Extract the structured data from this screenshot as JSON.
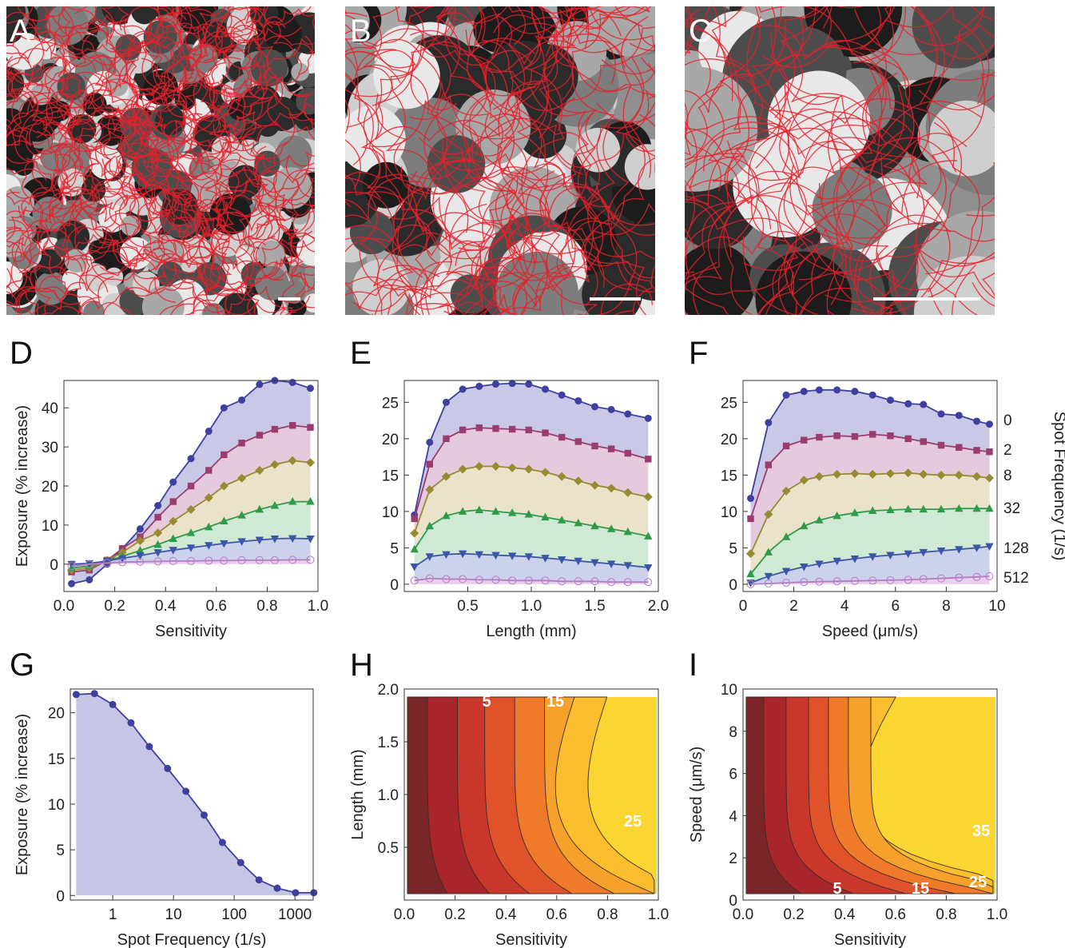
{
  "panel_labels": [
    "A",
    "B",
    "C",
    "D",
    "E",
    "F",
    "G",
    "H",
    "I"
  ],
  "series_colors": [
    "#3e3f9e",
    "#9a3c6f",
    "#978a32",
    "#2e9a4a",
    "#3b56a6",
    "#b57ac4"
  ],
  "fill_colors": [
    "#c7c5e6",
    "#e4c7dc",
    "#e9e1c6",
    "#cde8d3",
    "#c9d0ea",
    "#e7cde9"
  ],
  "markers": [
    "circle",
    "square",
    "diamond",
    "triangle-up",
    "triangle-down",
    "circle-open"
  ],
  "contour_colors": [
    "#7a2629",
    "#a8262b",
    "#c9372c",
    "#e0522a",
    "#ee7a2a",
    "#f5a12c",
    "#f9bd2d",
    "#fbd532"
  ],
  "chart_data": [
    {
      "panel": "A",
      "type": "image",
      "description": "micrograph-tiles-with-red-trajectories"
    },
    {
      "panel": "B",
      "type": "image",
      "description": "micrograph-tiles-with-red-trajectories-zoom"
    },
    {
      "panel": "C",
      "type": "image",
      "description": "micrograph-tiles-with-red-trajectories-zoom2"
    },
    {
      "panel": "D",
      "type": "line",
      "xlabel": "Sensitivity",
      "ylabel": "Exposure (% increase)",
      "xlim": [
        0,
        1
      ],
      "ylim": [
        -7,
        47
      ],
      "xticks": [
        "0.0",
        "0.2",
        "0.4",
        "0.6",
        "0.8",
        "1.0"
      ],
      "yticks": [
        "0",
        "10",
        "20",
        "30",
        "40"
      ],
      "x": [
        0.03,
        0.1,
        0.17,
        0.23,
        0.3,
        0.37,
        0.43,
        0.5,
        0.57,
        0.63,
        0.7,
        0.77,
        0.83,
        0.9,
        0.97
      ],
      "series": [
        {
          "values": [
            -5,
            -4,
            0,
            4,
            9,
            15,
            21,
            27,
            34,
            40,
            42,
            46,
            47,
            46.5,
            45
          ]
        },
        {
          "values": [
            -2,
            -1.5,
            1,
            4,
            7,
            12,
            16,
            20,
            24,
            28,
            31,
            33,
            34.5,
            35.5,
            35
          ]
        },
        {
          "values": [
            -1.5,
            -1,
            1,
            3,
            6,
            8,
            11,
            14,
            17,
            20,
            22,
            24,
            25.5,
            26.5,
            26
          ]
        },
        {
          "values": [
            -1,
            -0.5,
            0.8,
            2,
            3.5,
            5,
            6.5,
            8,
            9.5,
            11,
            12.5,
            14,
            15,
            16,
            16
          ]
        },
        {
          "values": [
            0,
            0.2,
            0.8,
            1.5,
            2.2,
            3,
            3.6,
            4.2,
            4.8,
            5.3,
            5.8,
            6.2,
            6.5,
            6.6,
            6.5
          ]
        },
        {
          "values": [
            -0.5,
            0,
            0.3,
            0.5,
            0.6,
            0.7,
            0.8,
            0.8,
            0.9,
            0.9,
            1,
            1,
            1,
            1.1,
            1.1
          ]
        }
      ]
    },
    {
      "panel": "E",
      "type": "line",
      "xlabel": "Length (mm)",
      "ylabel": "",
      "xlim": [
        0,
        2
      ],
      "ylim": [
        -1,
        28
      ],
      "xticks": [
        "0.5",
        "1.0",
        "1.5",
        "2.0"
      ],
      "yticks": [
        "0",
        "5",
        "10",
        "15",
        "20",
        "25"
      ],
      "x": [
        0.08,
        0.2,
        0.33,
        0.46,
        0.59,
        0.72,
        0.85,
        0.98,
        1.11,
        1.24,
        1.37,
        1.5,
        1.63,
        1.76,
        1.92
      ],
      "series": [
        {
          "values": [
            9.5,
            19.5,
            25,
            26.8,
            27.2,
            27.5,
            27.6,
            27.5,
            26.8,
            26,
            25.2,
            24.4,
            24,
            23.4,
            22.8
          ]
        },
        {
          "values": [
            9,
            16.5,
            20,
            21.2,
            21.5,
            21.4,
            21.3,
            21.2,
            20.8,
            20.2,
            19.6,
            19,
            18.6,
            18,
            17.2
          ]
        },
        {
          "values": [
            7,
            13,
            14.8,
            15.8,
            16.2,
            16.2,
            16,
            15.8,
            15.4,
            14.8,
            14.2,
            13.6,
            13.2,
            12.6,
            12
          ]
        },
        {
          "values": [
            4.8,
            8,
            9.4,
            10,
            10.2,
            10,
            9.8,
            9.6,
            9.2,
            8.8,
            8.4,
            8,
            7.6,
            7.2,
            6.6
          ]
        },
        {
          "values": [
            2.4,
            3.8,
            4.1,
            4.2,
            4.1,
            4,
            3.9,
            3.8,
            3.6,
            3.4,
            3.2,
            3,
            2.8,
            2.6,
            2.3
          ]
        },
        {
          "values": [
            0.5,
            0.8,
            0.7,
            0.7,
            0.6,
            0.6,
            0.5,
            0.5,
            0.5,
            0.4,
            0.4,
            0.4,
            0.3,
            0.3,
            0.3
          ]
        }
      ]
    },
    {
      "panel": "F",
      "type": "line",
      "xlabel": "Speed (μm/s)",
      "ylabel": "Spot Frequency (1/s)",
      "xlim": [
        0,
        10
      ],
      "ylim": [
        -1,
        28
      ],
      "xticks": [
        "0",
        "2",
        "4",
        "6",
        "8",
        "10"
      ],
      "yticks": [
        "0",
        "5",
        "10",
        "15",
        "20",
        "25"
      ],
      "x": [
        0.3,
        1.0,
        1.7,
        2.4,
        3.0,
        3.7,
        4.4,
        5.1,
        5.8,
        6.5,
        7.1,
        7.8,
        8.5,
        9.2,
        9.7
      ],
      "series": [
        {
          "name": "0",
          "values": [
            11.8,
            22.2,
            26,
            26.5,
            26.7,
            26.7,
            26.5,
            26,
            25.3,
            24.8,
            24.7,
            23.4,
            23.2,
            22.4,
            22
          ]
        },
        {
          "name": "2",
          "values": [
            9,
            16.4,
            19,
            19.8,
            20.2,
            20.4,
            20.3,
            20.6,
            20.4,
            20,
            19.6,
            19.1,
            18.8,
            18.4,
            18.2
          ]
        },
        {
          "name": "8",
          "values": [
            4.2,
            9.6,
            12.8,
            14.3,
            14.8,
            15.1,
            15.2,
            15.1,
            15.2,
            15.3,
            15.1,
            15,
            15,
            14.8,
            14.6
          ]
        },
        {
          "name": "32",
          "values": [
            1.4,
            4.4,
            6.5,
            8,
            8.8,
            9.4,
            9.8,
            10.1,
            10.2,
            10.3,
            10.3,
            10.3,
            10.4,
            10.4,
            10.4
          ]
        },
        {
          "name": "128",
          "values": [
            0.2,
            1.1,
            1.8,
            2.4,
            2.8,
            3.2,
            3.5,
            3.8,
            4,
            4.2,
            4.4,
            4.6,
            4.8,
            5,
            5.2
          ]
        },
        {
          "name": "512",
          "values": [
            0,
            0.1,
            0.2,
            0.3,
            0.35,
            0.4,
            0.45,
            0.5,
            0.55,
            0.6,
            0.7,
            0.8,
            0.9,
            1,
            1.1
          ]
        }
      ]
    },
    {
      "panel": "G",
      "type": "area",
      "xlabel": "Spot Frequency (1/s)",
      "ylabel": "Exposure (% increase)",
      "xscale": "log",
      "xlim": [
        0.2,
        2000
      ],
      "ylim": [
        -0.5,
        22.6
      ],
      "xticks": [
        "1",
        "10",
        "100",
        "1000"
      ],
      "yticks": [
        "0",
        "5",
        "10",
        "15",
        "20"
      ],
      "x": [
        0.25,
        0.5,
        1,
        2,
        4,
        8,
        16,
        32,
        64,
        128,
        256,
        512,
        1024,
        2048
      ],
      "values": [
        22,
        22.1,
        20.9,
        18.9,
        16.3,
        13.9,
        11.4,
        8.8,
        5.8,
        3.6,
        1.7,
        0.8,
        0.3,
        0.3
      ]
    },
    {
      "panel": "H",
      "type": "heatmap",
      "xlabel": "Sensitivity",
      "ylabel": "Length (mm)",
      "xlim": [
        0,
        1
      ],
      "ylim": [
        0,
        2
      ],
      "xticks": [
        "0.0",
        "0.2",
        "0.4",
        "0.6",
        "0.8",
        "1.0"
      ],
      "yticks": [
        "0.5",
        "1.0",
        "1.5",
        "2.0"
      ],
      "contour_labels": [
        "5",
        "15",
        "25"
      ]
    },
    {
      "panel": "I",
      "type": "heatmap",
      "xlabel": "Sensitivity",
      "ylabel": "Speed (μm/s)",
      "xlim": [
        0,
        1
      ],
      "ylim": [
        0,
        10
      ],
      "xticks": [
        "0.0",
        "0.2",
        "0.4",
        "0.6",
        "0.8",
        "1.0"
      ],
      "yticks": [
        "0",
        "2",
        "4",
        "6",
        "8",
        "10"
      ],
      "contour_labels": [
        "5",
        "15",
        "25",
        "35"
      ]
    }
  ]
}
